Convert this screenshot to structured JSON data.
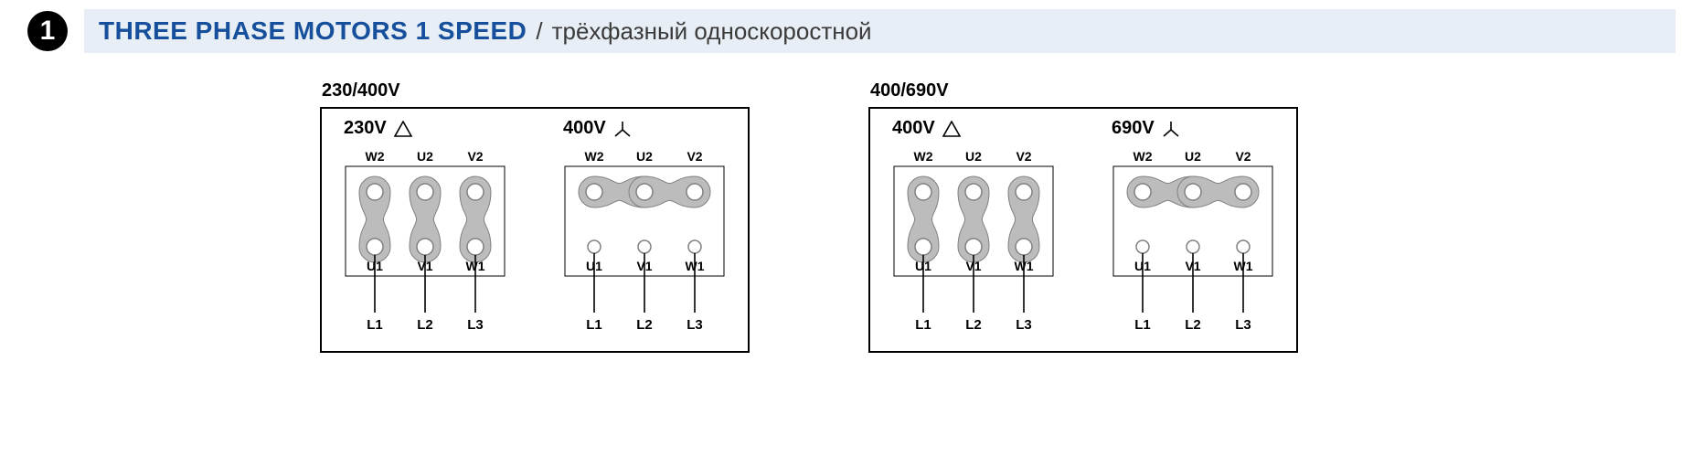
{
  "header": {
    "number": "1",
    "title_en": "THREE PHASE MOTORS 1 SPEED",
    "separator": "/",
    "title_ru": "трёхфазный односкоростной"
  },
  "groups": [
    {
      "title": "230/400V",
      "connections": [
        {
          "voltage": "230V",
          "type": "delta",
          "top_labels": [
            "W2",
            "U2",
            "V2"
          ],
          "bot_labels": [
            "U1",
            "V1",
            "W1"
          ],
          "line_labels": [
            "L1",
            "L2",
            "L3"
          ]
        },
        {
          "voltage": "400V",
          "type": "star",
          "top_labels": [
            "W2",
            "U2",
            "V2"
          ],
          "bot_labels": [
            "U1",
            "V1",
            "W1"
          ],
          "line_labels": [
            "L1",
            "L2",
            "L3"
          ]
        }
      ]
    },
    {
      "title": "400/690V",
      "connections": [
        {
          "voltage": "400V",
          "type": "delta",
          "top_labels": [
            "W2",
            "U2",
            "V2"
          ],
          "bot_labels": [
            "U1",
            "V1",
            "W1"
          ],
          "line_labels": [
            "L1",
            "L2",
            "L3"
          ]
        },
        {
          "voltage": "690V",
          "type": "star",
          "top_labels": [
            "W2",
            "U2",
            "V2"
          ],
          "bot_labels": [
            "U1",
            "V1",
            "W1"
          ],
          "line_labels": [
            "L1",
            "L2",
            "L3"
          ]
        }
      ]
    }
  ],
  "style": {
    "brand_color": "#164f9c",
    "header_bg": "#e8eef5",
    "link_fill": "#bcbcbc",
    "link_stroke": "#808080",
    "terminal_fill": "#ffffff",
    "terminal_stroke": "#808080",
    "box_stroke": "#000000",
    "wire_stroke": "#000000",
    "title_en_fontsize": 28,
    "title_ru_fontsize": 26,
    "group_title_fontsize": 20,
    "voltage_fontsize": 20,
    "label_fontsize": 14,
    "terminal_radius": 9,
    "link_radius": 17,
    "col_spacing": 55,
    "row_spacing": 60
  }
}
